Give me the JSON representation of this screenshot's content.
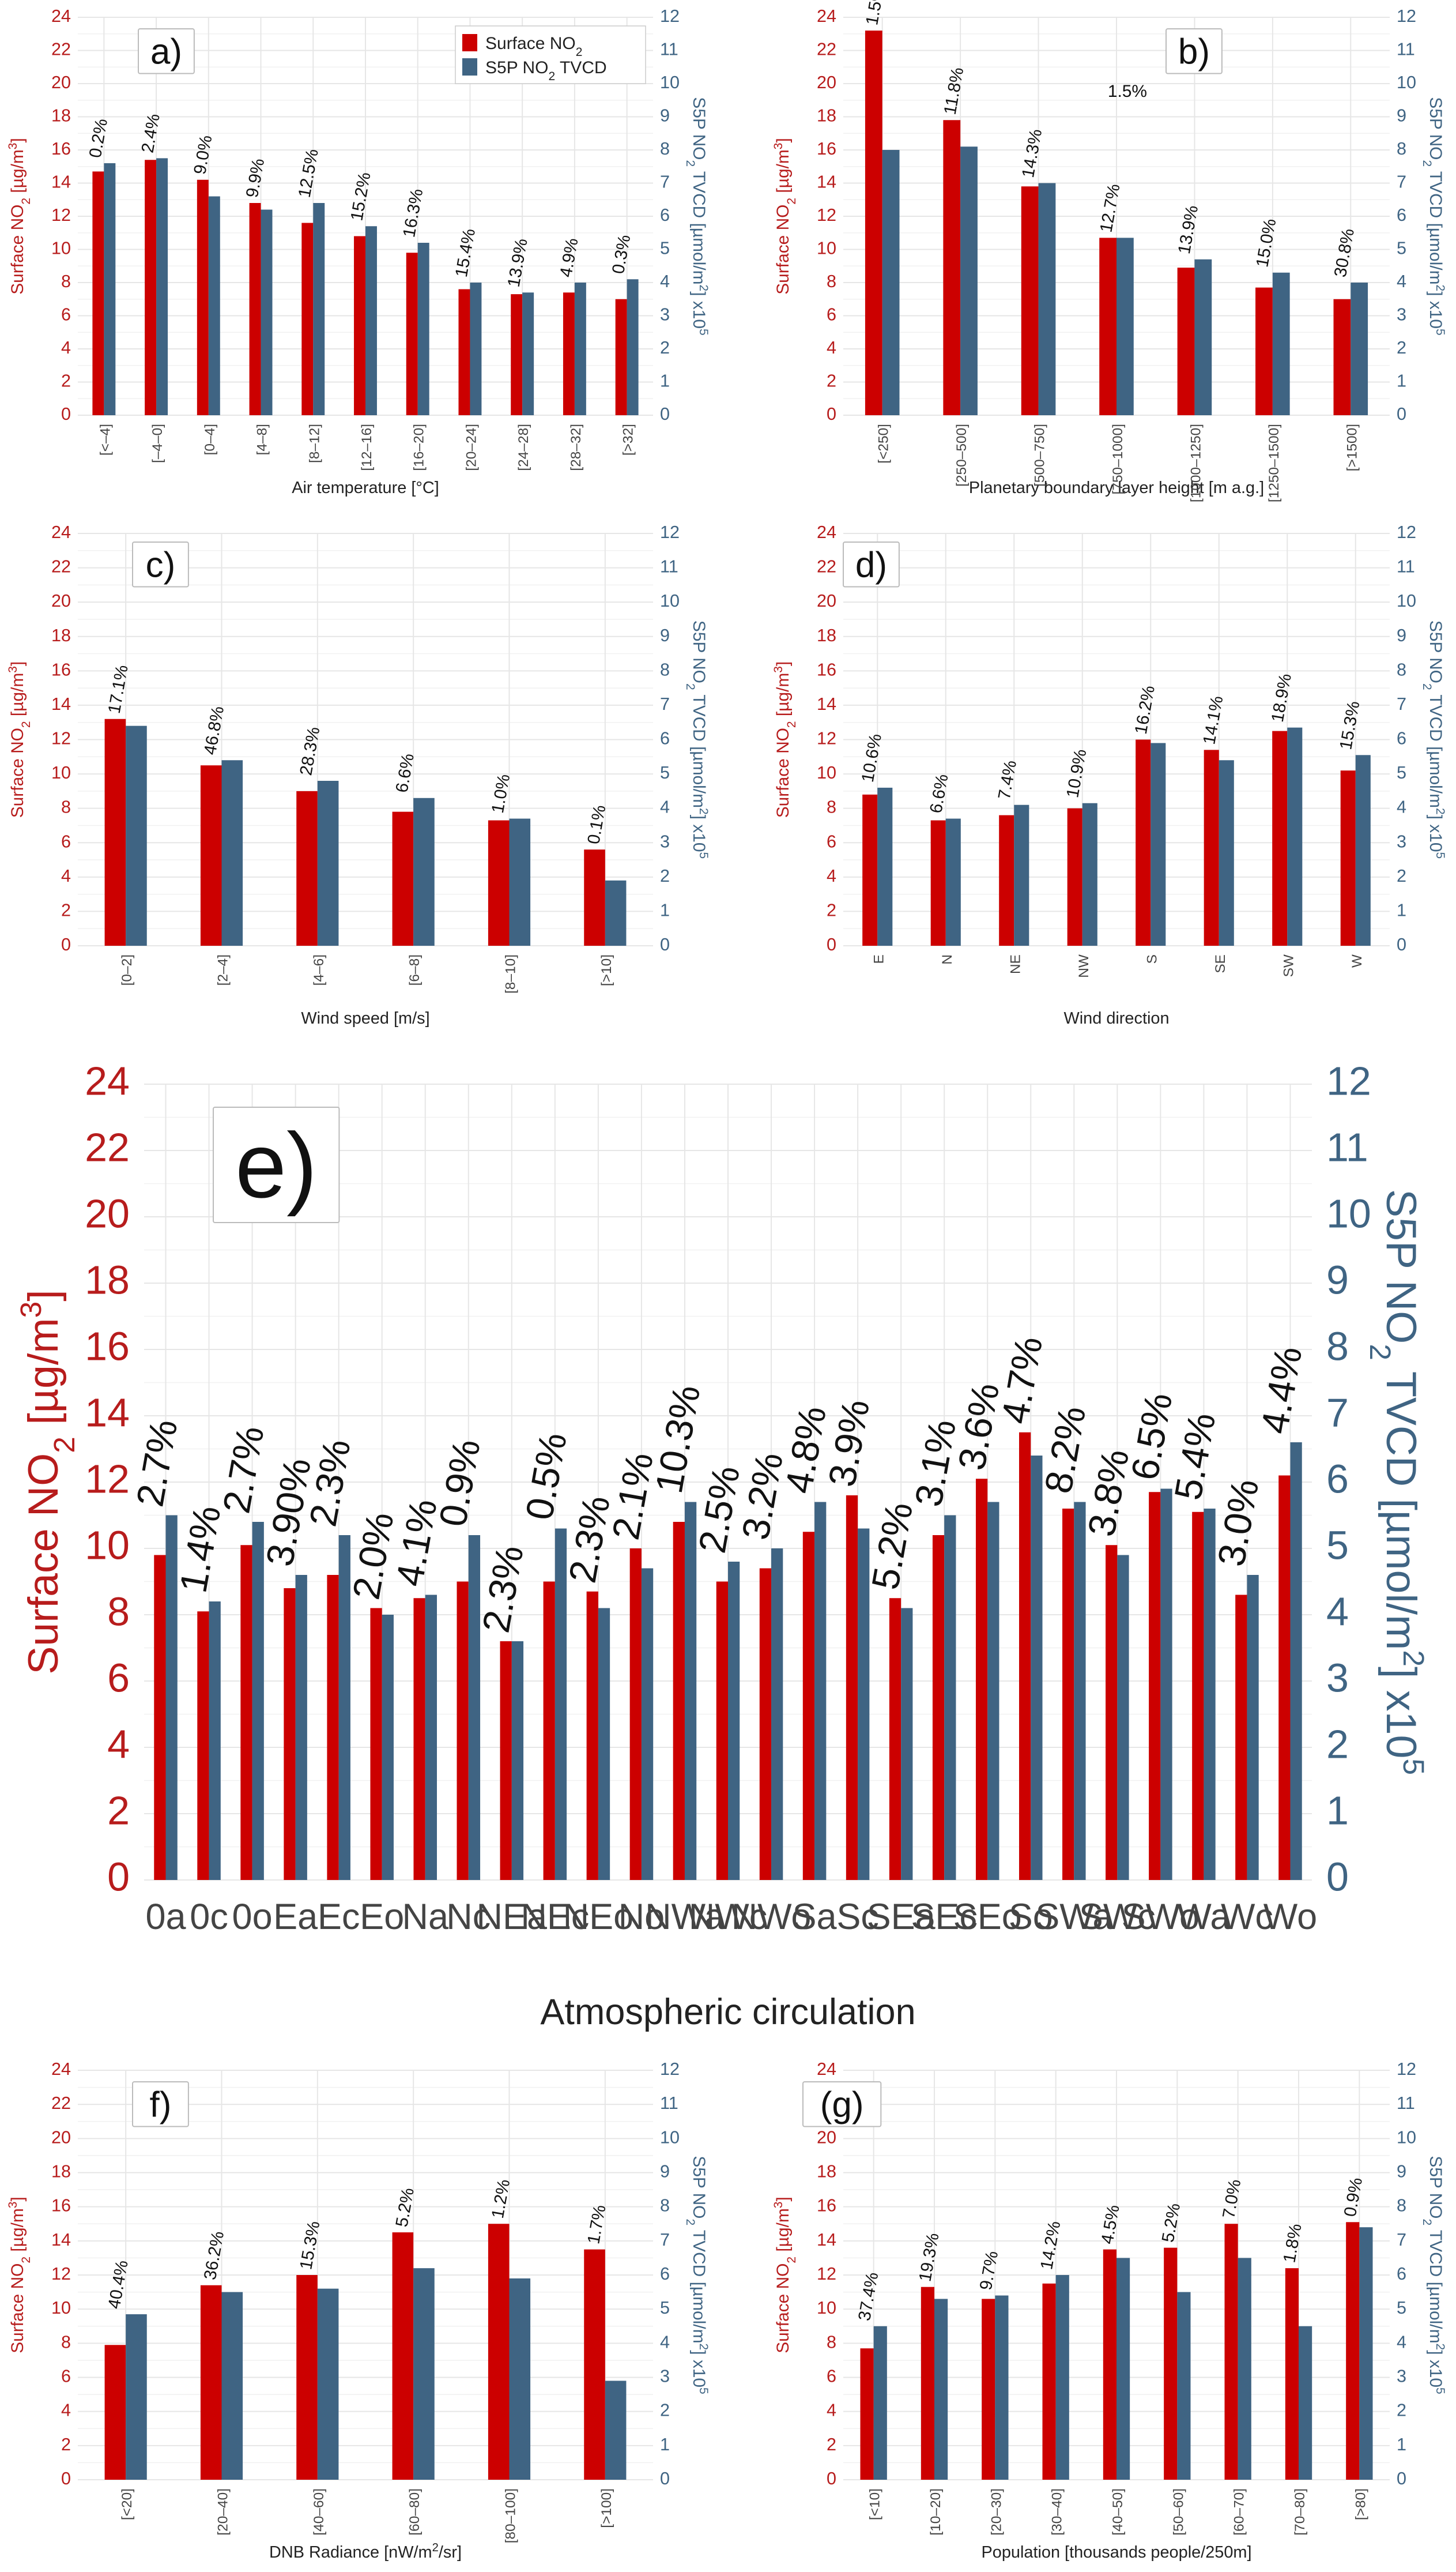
{
  "legend": {
    "no2": "Surface NO",
    "no2_sub": "2",
    "tvcd": "S5P NO",
    "tvcd_sub": "2",
    "tvcd_suffix": " TVCD"
  },
  "colors": {
    "no2": "#cc0000",
    "tvcd": "#3f6483"
  },
  "chart_data": [
    {
      "id": "a",
      "type": "bar",
      "tag": "a)",
      "xlabel": "Air temperature [°C]",
      "ylabel_left": "Surface NO2 [µg/m3]",
      "ylabel_right": "S5P NO2 TVCD [µmol/m2] x10^5",
      "ylim_left": [
        0,
        24
      ],
      "ylim_right": [
        0,
        12
      ],
      "categories": [
        "[<–4]",
        "[–4–0]",
        "[0–4]",
        "[4–8]",
        "[8–12]",
        "[12–16]",
        "[16–20]",
        "[20–24]",
        "[24–28]",
        "[28–32]",
        "[>32]"
      ],
      "series": [
        {
          "name": "Surface NO2",
          "axis": "left",
          "values": [
            14.7,
            15.4,
            14.2,
            12.8,
            11.6,
            10.8,
            9.8,
            7.6,
            7.3,
            7.4,
            7.0
          ]
        },
        {
          "name": "S5P NO2 TVCD",
          "axis": "right",
          "values": [
            7.6,
            7.75,
            6.6,
            6.2,
            6.4,
            5.7,
            5.2,
            4.0,
            3.7,
            4.0,
            4.1
          ]
        }
      ],
      "annotations": [
        "0.2%",
        "2.4%",
        "9.0%",
        "9.9%",
        "12.5%",
        "15.2%",
        "16.3%",
        "15.4%",
        "13.9%",
        "4.9%",
        "0.3%"
      ]
    },
    {
      "id": "b",
      "type": "bar",
      "tag": "b)",
      "xlabel": "Planetary boundary layer height [m a.g.]",
      "ylabel_left": "Surface NO2 [µg/m3]",
      "ylabel_right": "S5P NO2 TVCD [µmol/m2] x10^5",
      "ylim_left": [
        0,
        24
      ],
      "ylim_right": [
        0,
        12
      ],
      "categories": [
        "[<250]",
        "[250–500]",
        "[500–750]",
        "[750–1000]",
        "[1000–1250]",
        "[1250–1500]",
        "[>1500]"
      ],
      "series": [
        {
          "name": "Surface NO2",
          "axis": "left",
          "values": [
            23.2,
            17.8,
            13.8,
            10.7,
            8.9,
            7.7,
            7.0
          ]
        },
        {
          "name": "S5P NO2 TVCD",
          "axis": "right",
          "values": [
            8.0,
            8.1,
            7.0,
            5.35,
            4.7,
            4.3,
            4.0
          ]
        }
      ],
      "annotations": [
        "1.5%",
        "11.8%",
        "14.3%",
        "12.7%",
        "13.9%",
        "15.0%",
        "30.8%"
      ],
      "extra_annotation": "1.5%"
    },
    {
      "id": "c",
      "type": "bar",
      "tag": "c)",
      "xlabel": "Wind speed [m/s]",
      "ylabel_left": "Surface NO2 [µg/m3]",
      "ylabel_right": "S5P NO2 TVCD [µmol/m2] x10^5",
      "ylim_left": [
        0,
        24
      ],
      "ylim_right": [
        0,
        12
      ],
      "categories": [
        "[0–2]",
        "[2–4]",
        "[4–6]",
        "[6–8]",
        "[8–10]",
        "[>10]"
      ],
      "series": [
        {
          "name": "Surface NO2",
          "axis": "left",
          "values": [
            13.2,
            10.5,
            9.0,
            7.8,
            7.3,
            5.6
          ]
        },
        {
          "name": "S5P NO2 TVCD",
          "axis": "right",
          "values": [
            6.4,
            5.4,
            4.8,
            4.3,
            3.7,
            1.9
          ]
        }
      ],
      "annotations": [
        "17.1%",
        "46.8%",
        "28.3%",
        "6.6%",
        "1.0%",
        "0.1%"
      ]
    },
    {
      "id": "d",
      "type": "bar",
      "tag": "d)",
      "xlabel": "Wind direction",
      "ylabel_left": "Surface NO2 [µg/m3]",
      "ylabel_right": "S5P NO2 TVCD [µmol/m2] x10^5",
      "ylim_left": [
        0,
        24
      ],
      "ylim_right": [
        0,
        12
      ],
      "categories": [
        "E",
        "N",
        "NE",
        "NW",
        "S",
        "SE",
        "SW",
        "W"
      ],
      "series": [
        {
          "name": "Surface NO2",
          "axis": "left",
          "values": [
            8.8,
            7.3,
            7.6,
            8.0,
            12.0,
            11.4,
            12.5,
            10.2
          ]
        },
        {
          "name": "S5P NO2 TVCD",
          "axis": "right",
          "values": [
            4.6,
            3.7,
            4.1,
            4.15,
            5.9,
            5.4,
            6.35,
            5.55
          ]
        }
      ],
      "annotations": [
        "10.6%",
        "6.6%",
        "7.4%",
        "10.9%",
        "16.2%",
        "14.1%",
        "18.9%",
        "15.3%"
      ]
    },
    {
      "id": "e",
      "type": "bar",
      "tag": "e)",
      "xlabel": "Atmospheric circulation",
      "ylabel_left": "Surface NO2 [µg/m3]",
      "ylabel_right": "S5P NO2 TVCD [µmol/m2] x10^5",
      "ylim_left": [
        0,
        24
      ],
      "ylim_right": [
        0,
        12
      ],
      "categories": [
        "0a",
        "0c",
        "0o",
        "Ea",
        "Ec",
        "Eo",
        "Na",
        "Nc",
        "NEa",
        "NEc",
        "NEo",
        "No",
        "NWa",
        "NWc",
        "NWo",
        "Sa",
        "Sc",
        "SEa",
        "SEc",
        "SEo",
        "So",
        "SWa",
        "SWc",
        "SWo",
        "Wa",
        "Wc",
        "Wo"
      ],
      "series": [
        {
          "name": "Surface NO2",
          "axis": "left",
          "values": [
            9.8,
            8.1,
            10.1,
            8.8,
            9.2,
            8.2,
            8.5,
            9.0,
            7.2,
            9.0,
            8.7,
            10.0,
            10.8,
            9.0,
            9.4,
            10.5,
            11.6,
            8.5,
            10.4,
            12.1,
            13.5,
            11.2,
            10.1,
            11.7,
            11.1,
            8.6,
            12.2
          ]
        },
        {
          "name": "S5P NO2 TVCD",
          "axis": "right",
          "values": [
            5.5,
            4.2,
            5.4,
            4.6,
            5.2,
            4.0,
            4.3,
            5.2,
            3.6,
            5.3,
            4.1,
            4.7,
            5.7,
            4.8,
            5.0,
            5.7,
            5.3,
            4.1,
            5.5,
            5.7,
            6.4,
            5.7,
            4.9,
            5.9,
            5.6,
            4.6,
            6.6
          ]
        }
      ],
      "annotations": [
        "2.7%",
        "1.4%",
        "2.7%",
        "3.90%",
        "2.3%",
        "2.0%",
        "4.1%",
        "0.9%",
        "2.3%",
        "0.5%",
        "2.3%",
        "2.1%",
        "10.3%",
        "2.5%",
        "3.2%",
        "4.8%",
        "3.9%",
        "5.2%",
        "3.1%",
        "3.6%",
        "4.7%",
        "8.2%",
        "3.8%",
        "6.5%",
        "5.4%",
        "3.0%",
        "4.4%"
      ]
    },
    {
      "id": "f",
      "type": "bar",
      "tag": "f)",
      "xlabel": "DNB Radiance [nW/m2/sr]",
      "ylabel_left": "Surface NO2 [µg/m3]",
      "ylabel_right": "S5P NO2 TVCD [µmol/m2] x10^5",
      "ylim_left": [
        0,
        24
      ],
      "ylim_right": [
        0,
        12
      ],
      "categories": [
        "[<20]",
        "[20–40]",
        "[40–60]",
        "[60–80]",
        "[80–100]",
        "[>100]"
      ],
      "series": [
        {
          "name": "Surface NO2",
          "axis": "left",
          "values": [
            7.9,
            11.4,
            12.0,
            14.5,
            15.0,
            13.5
          ]
        },
        {
          "name": "S5P NO2 TVCD",
          "axis": "right",
          "values": [
            4.85,
            5.5,
            5.6,
            6.2,
            5.9,
            2.9
          ]
        }
      ],
      "annotations": [
        "40.4%",
        "36.2%",
        "15.3%",
        "5.2%",
        "1.2%",
        "1.7%"
      ]
    },
    {
      "id": "g",
      "type": "bar",
      "tag": "(g)",
      "xlabel": "Population [thousands people/250m]",
      "ylabel_left": "Surface NO2 [µg/m3]",
      "ylabel_right": "S5P NO2 TVCD [µmol/m2] x10^5",
      "ylim_left": [
        0,
        24
      ],
      "ylim_right": [
        0,
        12
      ],
      "categories": [
        "[<10]",
        "[10–20]",
        "[20–30]",
        "[30–40]",
        "[40–50]",
        "[50–60]",
        "[60–70]",
        "[70–80]",
        "[>80]"
      ],
      "series": [
        {
          "name": "Surface NO2",
          "axis": "left",
          "values": [
            7.7,
            11.3,
            10.6,
            11.5,
            13.5,
            13.6,
            15.0,
            12.4,
            15.1
          ]
        },
        {
          "name": "S5P NO2 TVCD",
          "axis": "right",
          "values": [
            4.5,
            5.3,
            5.4,
            6.0,
            6.5,
            5.5,
            6.5,
            4.5,
            7.4
          ]
        }
      ],
      "annotations": [
        "37.4%",
        "19.3%",
        "9.7%",
        "14.2%",
        "4.5%",
        "5.2%",
        "7.0%",
        "1.8%",
        "0.9%"
      ]
    }
  ]
}
